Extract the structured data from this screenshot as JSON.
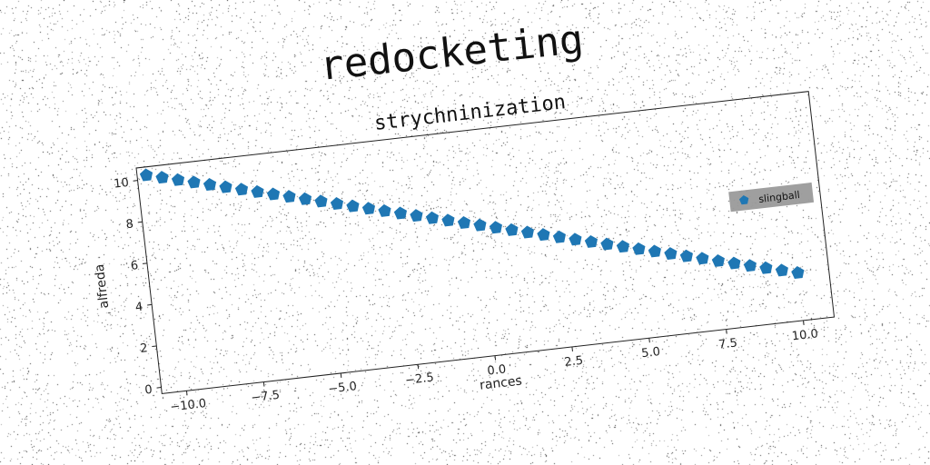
{
  "figure": {
    "suptitle": "redocketing"
  },
  "chart_data": {
    "type": "scatter",
    "title": "strychninization",
    "xlabel": "rances",
    "ylabel": "alfreda",
    "xlim": [
      -10.8,
      11.0
    ],
    "ylim": [
      -0.3,
      10.6
    ],
    "xticks": [
      -10.0,
      -7.5,
      -5.0,
      -2.5,
      0.0,
      2.5,
      5.0,
      7.5,
      10.0
    ],
    "xtick_labels": [
      "−10.0",
      "−7.5",
      "−5.0",
      "−2.5",
      "0.0",
      "2.5",
      "5.0",
      "7.5",
      "10.0"
    ],
    "yticks": [
      0,
      2,
      4,
      6,
      8,
      10
    ],
    "ytick_labels": [
      "0",
      "2",
      "4",
      "6",
      "8",
      "10"
    ],
    "grid": false,
    "legend_placement": "center-right",
    "series": [
      {
        "name": "slingball",
        "color": "#1f77b4",
        "marker": "pentagon",
        "x_start": -10.5,
        "x_end": 10.0,
        "x": [
          -10.5,
          -10.0,
          -9.5,
          -9.0,
          -8.5,
          -8.0,
          -7.5,
          -7.0,
          -6.5,
          -6.0,
          -5.5,
          -5.0,
          -4.5,
          -4.0,
          -3.5,
          -3.0,
          -2.5,
          -2.0,
          -1.5,
          -1.0,
          -0.5,
          0.0,
          0.5,
          1.0,
          1.5,
          2.0,
          2.5,
          3.0,
          3.5,
          4.0,
          4.5,
          5.0,
          5.5,
          6.0,
          6.5,
          7.0,
          7.5,
          8.0,
          8.5,
          9.0,
          9.5,
          10.0
        ],
        "y": [
          10.2,
          10.0,
          9.8,
          9.6,
          9.4,
          9.2,
          9.0,
          8.8,
          8.6,
          8.4,
          8.2,
          8.0,
          7.8,
          7.6,
          7.4,
          7.2,
          7.0,
          6.8,
          6.6,
          6.4,
          6.2,
          6.0,
          5.8,
          5.6,
          5.4,
          5.2,
          5.0,
          4.8,
          4.6,
          4.4,
          4.2,
          4.0,
          3.8,
          3.6,
          3.4,
          3.2,
          3.0,
          2.8,
          2.6,
          2.4,
          2.2,
          2.0
        ]
      }
    ]
  }
}
